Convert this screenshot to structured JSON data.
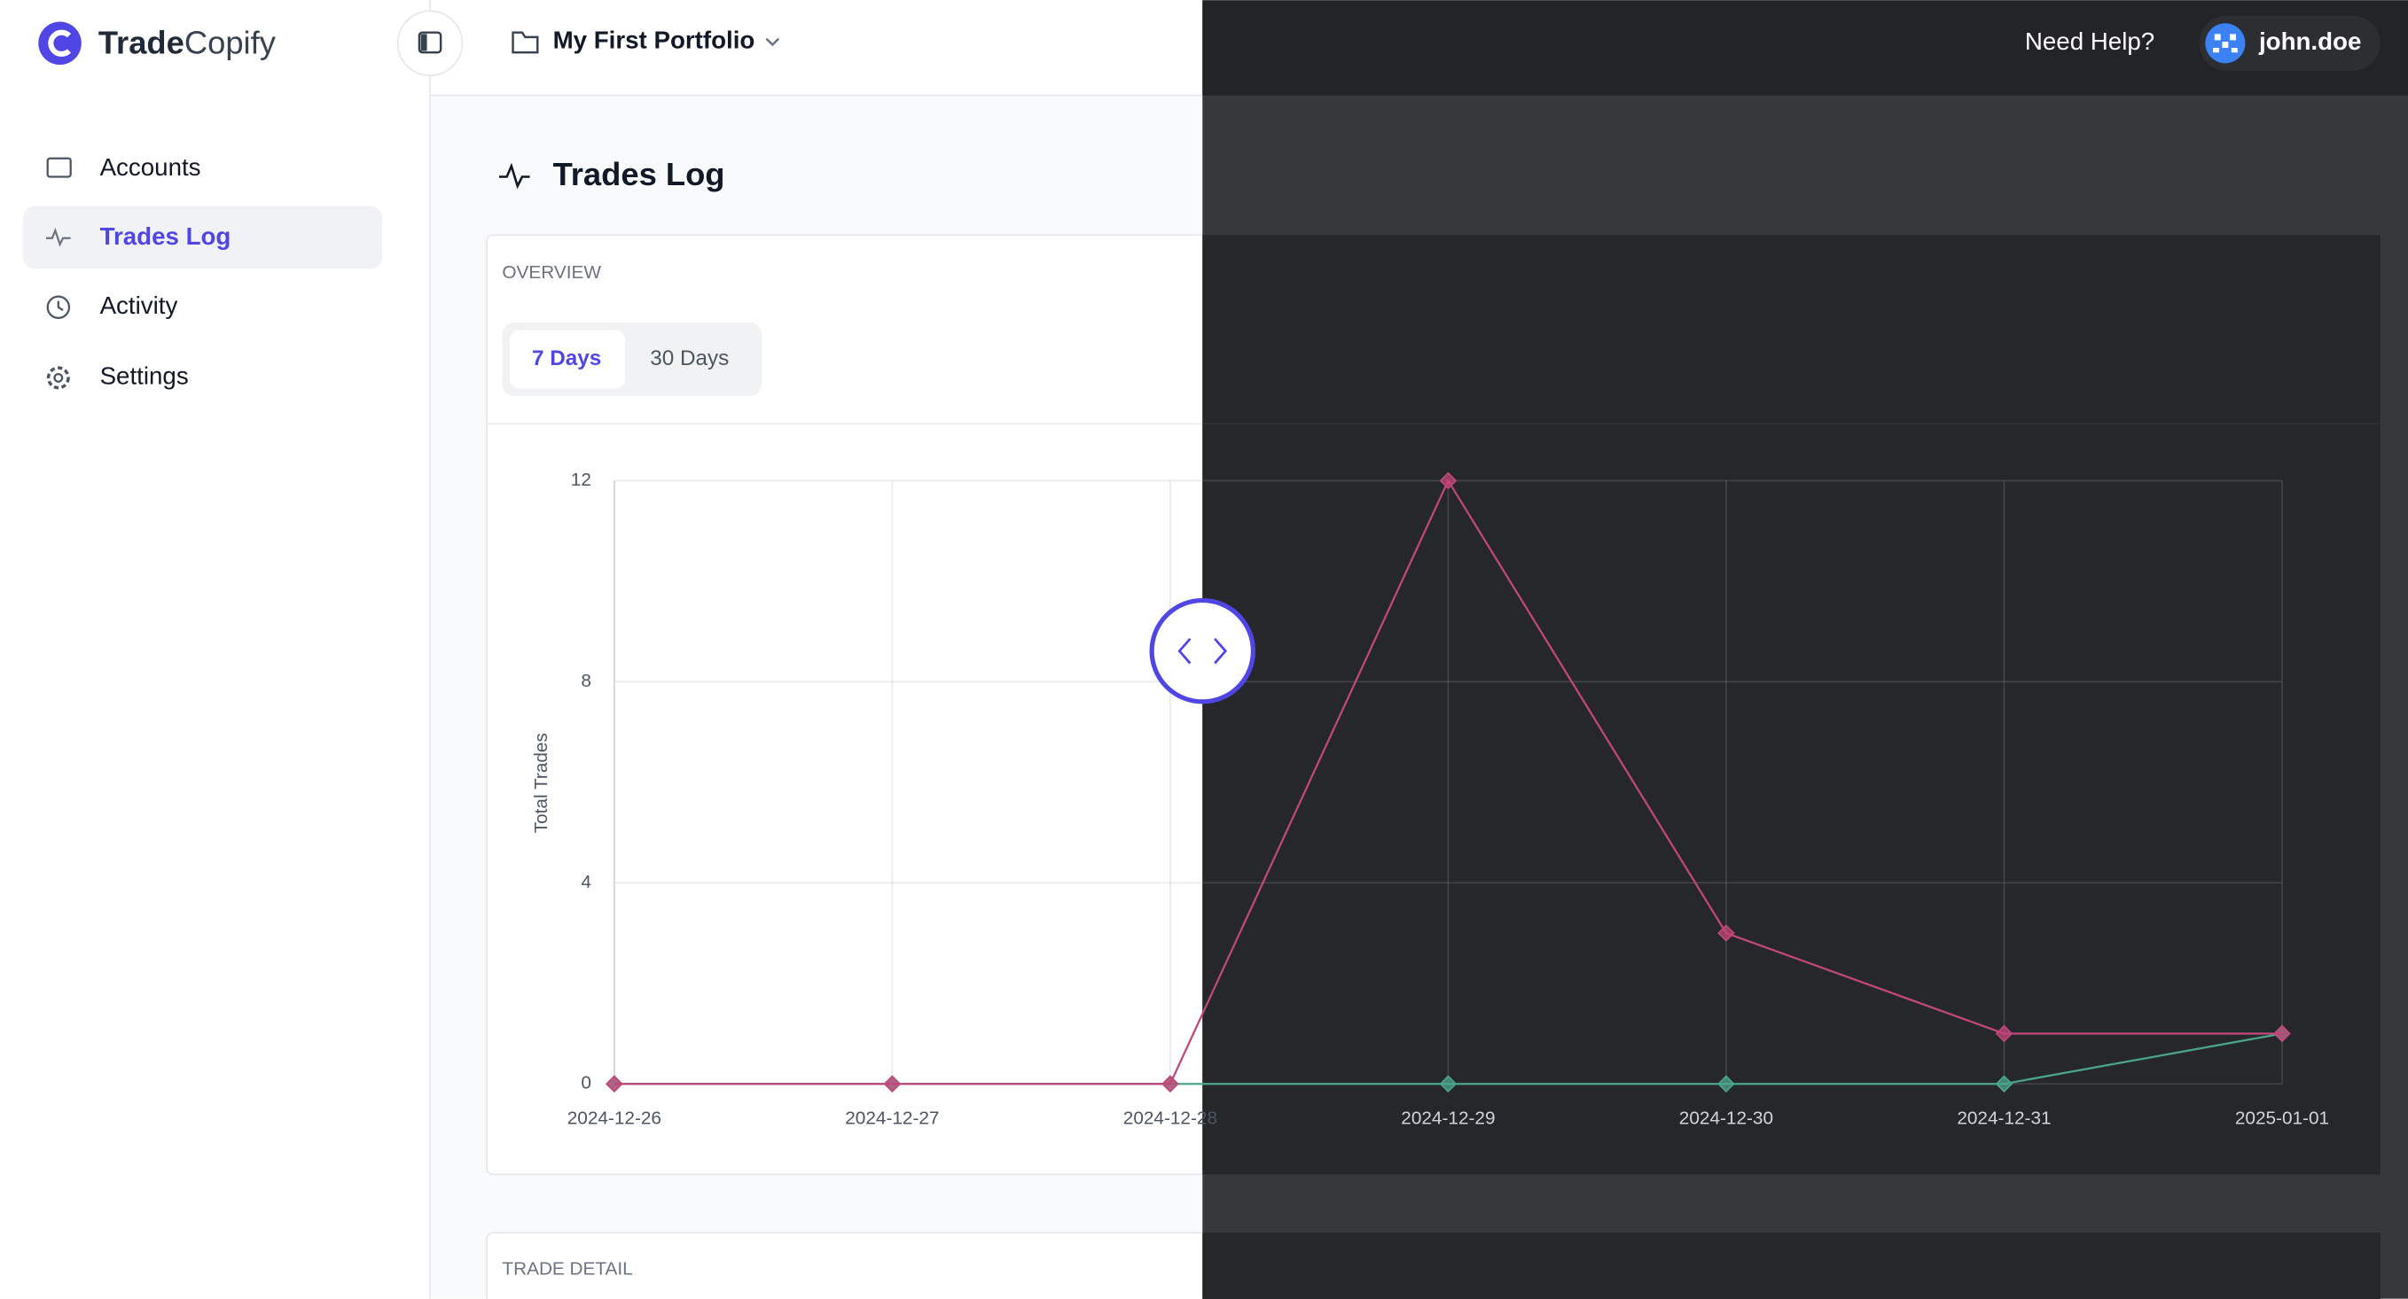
{
  "brand": {
    "bold": "Trade",
    "light": "Copify"
  },
  "header": {
    "portfolio": "My First Portfolio",
    "help": "Need Help?",
    "user": "john.doe"
  },
  "sidebar": {
    "items": [
      "Accounts",
      "Trades Log",
      "Activity",
      "Settings"
    ]
  },
  "page": {
    "title": "Trades Log",
    "overview": "OVERVIEW",
    "tabs": [
      "7 Days",
      "30 Days"
    ],
    "detail": "TRADE DETAIL"
  },
  "chart_data": {
    "type": "line",
    "categories": [
      "2024-12-26",
      "2024-12-27",
      "2024-12-28",
      "2024-12-29",
      "2024-12-30",
      "2024-12-31",
      "2025-01-01"
    ],
    "y_label": "Total Trades",
    "series": [
      {
        "color": "#c2477a",
        "values": [
          0,
          0,
          0,
          12,
          3,
          1,
          1
        ]
      },
      {
        "color": "#4aa58c",
        "values": [
          0,
          0,
          0,
          0,
          0,
          0,
          1
        ]
      }
    ],
    "ylim": [
      0,
      12
    ],
    "yticks": [
      0,
      4,
      8,
      12
    ],
    "grid": true
  }
}
